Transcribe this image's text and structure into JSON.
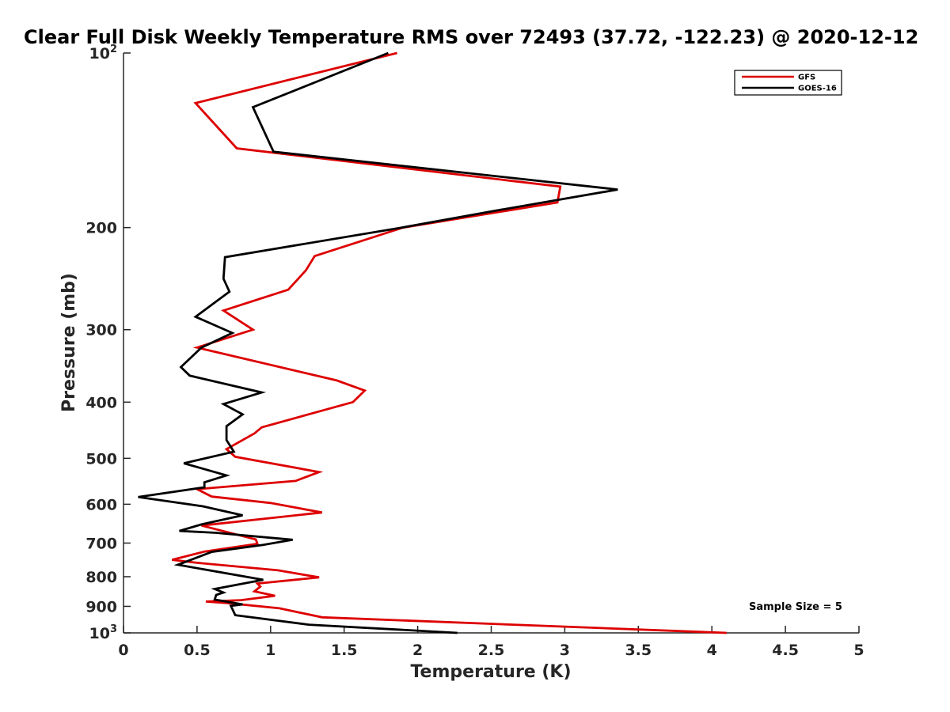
{
  "chart_data": {
    "type": "line",
    "title": "Clear Full Disk Weekly Temperature RMS over 72493 (37.72, -122.23) @ 2020-12-12",
    "xlabel": "Temperature (K)",
    "ylabel": "Pressure (mb)",
    "xlim": [
      0,
      5
    ],
    "ylim": [
      100,
      1000
    ],
    "yscale": "log",
    "y_reversed": true,
    "x_ticks": [
      "0",
      "0.5",
      "1",
      "1.5",
      "2",
      "2.5",
      "3",
      "3.5",
      "4",
      "4.5",
      "5"
    ],
    "y_ticks": [
      {
        "value": 100,
        "base": "10",
        "exp": "2"
      },
      {
        "value": 200,
        "label": "200"
      },
      {
        "value": 300,
        "label": "300"
      },
      {
        "value": 400,
        "label": "400"
      },
      {
        "value": 500,
        "label": "500"
      },
      {
        "value": 600,
        "label": "600"
      },
      {
        "value": 700,
        "label": "700"
      },
      {
        "value": 800,
        "label": "800"
      },
      {
        "value": 900,
        "label": "900"
      },
      {
        "value": 1000,
        "base": "10",
        "exp": "3"
      }
    ],
    "grid": false,
    "legend_position": "top-right",
    "annotation": "Sample Size = 5",
    "series": [
      {
        "name": "GFS",
        "color": "#dd0000",
        "points": [
          [
            1.86,
            100
          ],
          [
            0.49,
            122
          ],
          [
            0.77,
            146
          ],
          [
            2.97,
            170
          ],
          [
            2.95,
            181
          ],
          [
            1.9,
            200
          ],
          [
            1.3,
            224
          ],
          [
            1.24,
            237
          ],
          [
            1.12,
            256
          ],
          [
            0.68,
            278
          ],
          [
            0.88,
            300
          ],
          [
            0.5,
            322
          ],
          [
            1.45,
            367
          ],
          [
            1.64,
            382
          ],
          [
            1.56,
            400
          ],
          [
            0.94,
            442
          ],
          [
            0.89,
            453
          ],
          [
            0.7,
            482
          ],
          [
            0.76,
            497
          ],
          [
            1.33,
            528
          ],
          [
            1.17,
            547
          ],
          [
            0.5,
            565
          ],
          [
            0.6,
            582
          ],
          [
            1.0,
            597
          ],
          [
            1.35,
            620
          ],
          [
            0.53,
            653
          ],
          [
            0.9,
            690
          ],
          [
            0.91,
            702
          ],
          [
            0.55,
            724
          ],
          [
            0.33,
            748
          ],
          [
            0.5,
            757
          ],
          [
            1.05,
            780
          ],
          [
            1.33,
            802
          ],
          [
            0.91,
            822
          ],
          [
            0.93,
            832
          ],
          [
            0.89,
            848
          ],
          [
            1.03,
            863
          ],
          [
            0.8,
            878
          ],
          [
            0.56,
            883
          ],
          [
            0.7,
            888
          ],
          [
            1.06,
            907
          ],
          [
            1.35,
            940
          ],
          [
            4.1,
            1000
          ]
        ]
      },
      {
        "name": "GOES-16",
        "color": "#000000",
        "points": [
          [
            1.8,
            100
          ],
          [
            0.88,
            124
          ],
          [
            1.02,
            148
          ],
          [
            3.36,
            172
          ],
          [
            2.53,
            187
          ],
          [
            1.89,
            200
          ],
          [
            0.69,
            225
          ],
          [
            0.68,
            245
          ],
          [
            0.72,
            258
          ],
          [
            0.49,
            285
          ],
          [
            0.74,
            304
          ],
          [
            0.53,
            322
          ],
          [
            0.39,
            348
          ],
          [
            0.45,
            360
          ],
          [
            0.94,
            385
          ],
          [
            0.68,
            403
          ],
          [
            0.81,
            420
          ],
          [
            0.7,
            440
          ],
          [
            0.7,
            465
          ],
          [
            0.75,
            487
          ],
          [
            0.41,
            510
          ],
          [
            0.7,
            535
          ],
          [
            0.55,
            550
          ],
          [
            0.55,
            561
          ],
          [
            0.1,
            583
          ],
          [
            0.54,
            605
          ],
          [
            0.81,
            627
          ],
          [
            0.53,
            650
          ],
          [
            0.38,
            667
          ],
          [
            0.63,
            672
          ],
          [
            1.15,
            691
          ],
          [
            0.95,
            705
          ],
          [
            0.6,
            725
          ],
          [
            0.37,
            763
          ],
          [
            0.95,
            810
          ],
          [
            0.62,
            840
          ],
          [
            0.68,
            852
          ],
          [
            0.63,
            860
          ],
          [
            0.62,
            876
          ],
          [
            0.81,
            893
          ],
          [
            0.73,
            898
          ],
          [
            0.76,
            932
          ],
          [
            1.26,
            968
          ],
          [
            2.27,
            1000
          ]
        ]
      }
    ]
  }
}
